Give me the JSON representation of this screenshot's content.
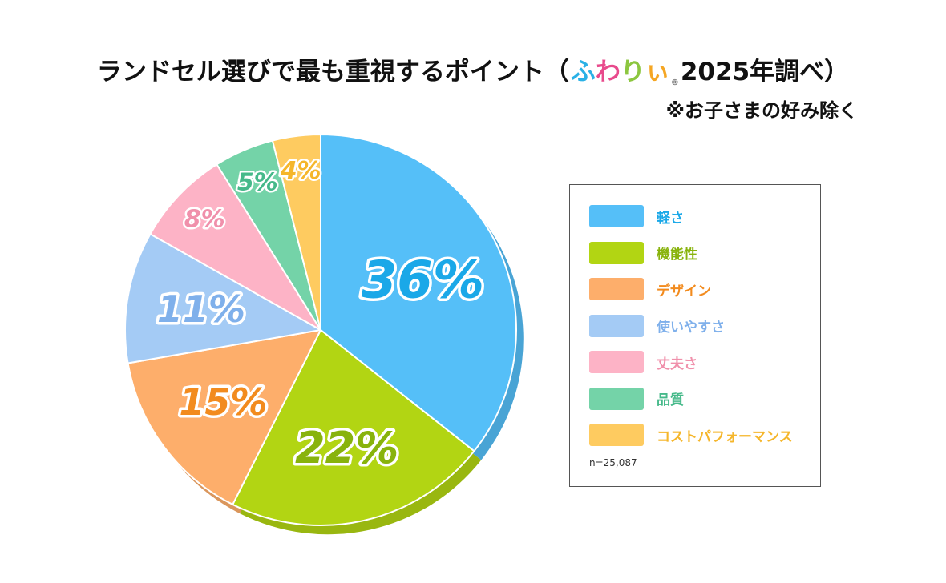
{
  "title": {
    "main": "ランドセル選びで最も重視するポイント（",
    "brand_chars": [
      {
        "char": "ふ",
        "color": "#2ab1e6"
      },
      {
        "char": "わ",
        "color": "#e84a8c"
      },
      {
        "char": "り",
        "color": "#8cc63f"
      },
      {
        "char": "ぃ",
        "color": "#f5a623"
      }
    ],
    "brand_mark": "®",
    "suffix": "2025年調べ）",
    "subtitle": "※お子さまの好み除く"
  },
  "chart_data": {
    "type": "pie",
    "categories": [
      "軽さ",
      "機能性",
      "デザイン",
      "使いやすさ",
      "丈夫さ",
      "品質",
      "コストパフォーマンス"
    ],
    "values": [
      36,
      22,
      15,
      11,
      8,
      5,
      4
    ],
    "value_labels": [
      "36%",
      "22%",
      "15%",
      "11%",
      "8%",
      "5%",
      "4%"
    ],
    "colors": [
      "#55bff8",
      "#b2d513",
      "#fdae6b",
      "#a4cbf5",
      "#fdb3c6",
      "#74d3a8",
      "#fecb60"
    ],
    "label_colors": [
      "#1aa8e8",
      "#88b30c",
      "#f28b1e",
      "#7fb0eb",
      "#f090ab",
      "#46b98a",
      "#f5b62b"
    ],
    "legend_placement": "right",
    "n_label": "n=25,087"
  }
}
